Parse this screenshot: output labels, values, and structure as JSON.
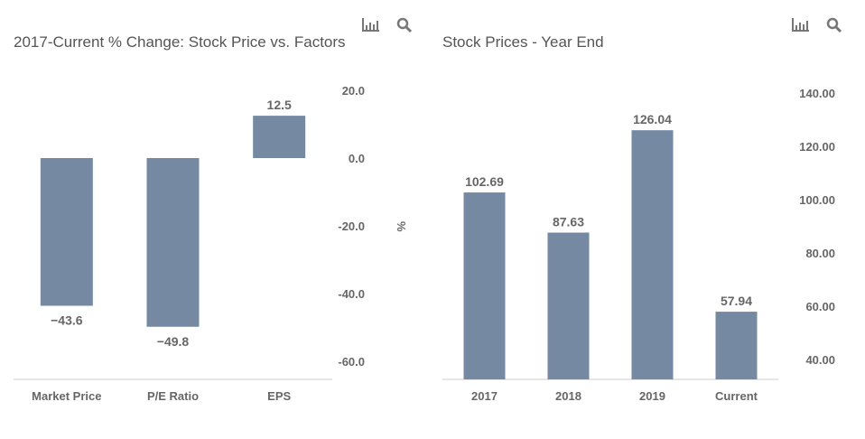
{
  "chart_data": [
    {
      "type": "bar",
      "title": "2017-Current % Change: Stock Price vs. Factors",
      "xlabel": "",
      "ylabel": "%",
      "categories": [
        "Market Price",
        "P/E Ratio",
        "EPS"
      ],
      "values": [
        -43.6,
        -49.8,
        12.5
      ],
      "data_labels": [
        "-43.6",
        "-49.8",
        "12.5"
      ],
      "y_ticks": [
        "20.0",
        "0.0",
        "-20.0",
        "-40.0",
        "-60.0"
      ],
      "ylim": [
        -65,
        20
      ],
      "y_axis_side": "right",
      "grid": false,
      "bar_color": "#7589a2"
    },
    {
      "type": "bar",
      "title": "Stock Prices - Year End",
      "xlabel": "",
      "ylabel": "",
      "categories": [
        "2017",
        "2018",
        "2019",
        "Current"
      ],
      "values": [
        102.69,
        87.63,
        126.04,
        57.94
      ],
      "data_labels": [
        "102.69",
        "87.63",
        "126.04",
        "57.94"
      ],
      "y_ticks": [
        "140.00",
        "120.00",
        "100.00",
        "80.00",
        "60.00",
        "40.00"
      ],
      "ylim": [
        32.5,
        140
      ],
      "y_axis_side": "right",
      "grid": false,
      "bar_color": "#7589a2"
    }
  ],
  "toolbar": {
    "icons": [
      "bar-chart-icon",
      "search-icon"
    ]
  }
}
